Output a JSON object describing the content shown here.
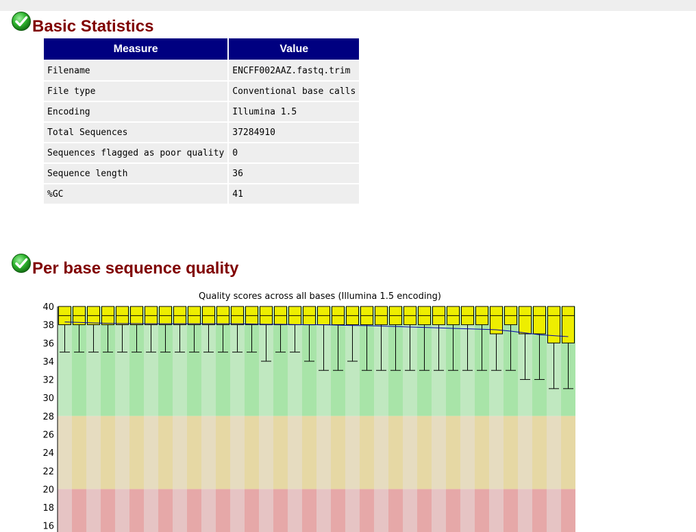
{
  "sections": {
    "basic_stats": {
      "title": "Basic Statistics",
      "status": "pass"
    },
    "per_base_quality": {
      "title": "Per base sequence quality",
      "status": "pass"
    }
  },
  "stats_table": {
    "headers": {
      "measure": "Measure",
      "value": "Value"
    },
    "rows": [
      {
        "measure": "Filename",
        "value": "ENCFF002AAZ.fastq.trim"
      },
      {
        "measure": "File type",
        "value": "Conventional base calls"
      },
      {
        "measure": "Encoding",
        "value": "Illumina 1.5"
      },
      {
        "measure": "Total Sequences",
        "value": "37284910"
      },
      {
        "measure": "Sequences flagged as poor quality",
        "value": "0"
      },
      {
        "measure": "Sequence length",
        "value": "36"
      },
      {
        "measure": "%GC",
        "value": "41"
      }
    ]
  },
  "colors": {
    "title": "#800000",
    "header_bg": "#000080",
    "box_fill": "#eeee00",
    "mean_line": "#0000aa",
    "zone_good": [
      "#c0e8c0",
      "#a8e4a8"
    ],
    "zone_ok": [
      "#e6dcc0",
      "#e6d8a4"
    ],
    "zone_poor": [
      "#e6c4c4",
      "#e6a8a8"
    ]
  },
  "icons": {
    "status": "check-circle-icon"
  },
  "chart_data": {
    "type": "box",
    "title": "Quality scores across all bases (Illumina 1.5 encoding)",
    "y_visible_ticks": [
      40,
      38,
      36,
      34,
      32,
      30,
      28,
      26,
      24,
      22,
      20,
      18,
      16
    ],
    "ylim_visible": [
      15.3,
      40
    ],
    "zones": {
      "good_min": 28,
      "ok_min": 20
    },
    "positions": 36,
    "mean": [
      38.3,
      38.25,
      38.2,
      38.15,
      38.12,
      38.12,
      38.1,
      38.1,
      38.1,
      38.1,
      38.1,
      38.1,
      38.1,
      38.08,
      38.05,
      38.05,
      38.02,
      38.0,
      38.0,
      37.95,
      37.92,
      37.9,
      37.85,
      37.8,
      37.75,
      37.7,
      37.65,
      37.6,
      37.55,
      37.5,
      37.45,
      37.3,
      37.1,
      36.9,
      36.8,
      36.7
    ],
    "median": [
      39,
      39,
      39,
      39,
      39,
      39,
      39,
      39,
      39,
      39,
      39,
      39,
      39,
      39,
      39,
      39,
      39,
      39,
      39,
      39,
      39,
      39,
      39,
      39,
      39,
      39,
      39,
      39,
      39,
      39,
      39,
      39,
      39,
      39,
      39,
      39
    ],
    "q1": [
      38,
      38,
      38,
      38,
      38,
      38,
      38,
      38,
      38,
      38,
      38,
      38,
      38,
      38,
      38,
      38,
      38,
      38,
      38,
      38,
      38,
      38,
      38,
      38,
      38,
      38,
      38,
      38,
      38,
      38,
      37,
      38,
      37,
      37,
      36,
      36
    ],
    "q3": [
      40,
      40,
      40,
      40,
      40,
      40,
      40,
      40,
      40,
      40,
      40,
      40,
      40,
      40,
      40,
      40,
      40,
      40,
      40,
      40,
      40,
      40,
      40,
      40,
      40,
      40,
      40,
      40,
      40,
      40,
      40,
      40,
      40,
      40,
      40,
      40
    ],
    "p10": [
      35,
      35,
      35,
      35,
      35,
      35,
      35,
      35,
      35,
      35,
      35,
      35,
      35,
      35,
      34,
      35,
      35,
      34,
      33,
      33,
      34,
      33,
      33,
      33,
      33,
      33,
      33,
      33,
      33,
      33,
      33,
      33,
      32,
      32,
      31,
      31
    ],
    "p90": [
      40,
      40,
      40,
      40,
      40,
      40,
      40,
      40,
      40,
      40,
      40,
      40,
      40,
      40,
      40,
      40,
      40,
      40,
      40,
      40,
      40,
      40,
      40,
      40,
      40,
      40,
      40,
      40,
      40,
      40,
      40,
      40,
      40,
      40,
      40,
      40
    ]
  }
}
